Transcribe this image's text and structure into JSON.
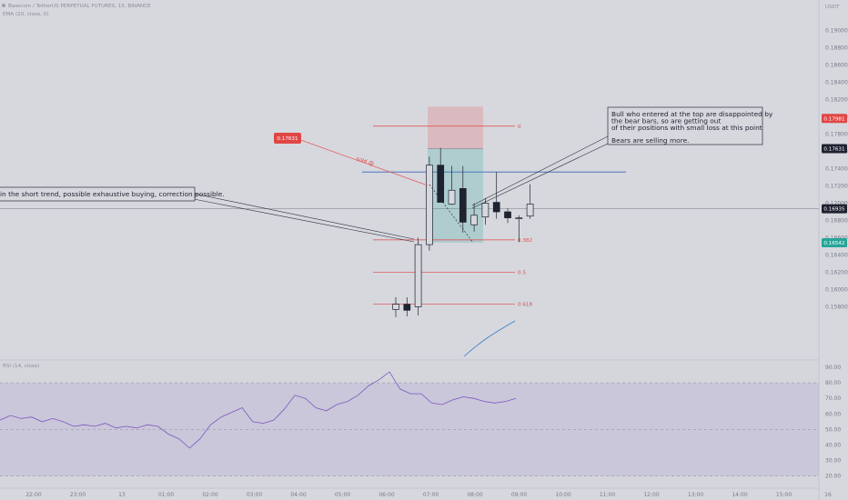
{
  "header": {
    "symbol_line": "Basecoin / TetherUS PERPETUAL FUTURES, 15, BINANCE",
    "ema_line": "EMA (20, close, 0)"
  },
  "price_axis": {
    "currency": "USDT",
    "ticks": [
      "0.19000",
      "0.18800",
      "0.18600",
      "0.18400",
      "0.18200",
      "0.18000",
      "0.17800",
      "0.17600",
      "0.17400",
      "0.17200",
      "0.17000",
      "0.16800",
      "0.16600",
      "0.16400",
      "0.16200",
      "0.16000",
      "0.15800"
    ]
  },
  "price_tags": [
    {
      "id": "top",
      "text": "0.17981",
      "color": "#e04646"
    },
    {
      "id": "sold",
      "text": "0.17631",
      "color": "#1f2230"
    },
    {
      "id": "last",
      "text": "0.16935",
      "color": "#1f2230"
    },
    {
      "id": "low",
      "text": "0.16542",
      "color": "#26a69a"
    }
  ],
  "left_tag": {
    "text": "0.17631",
    "color": "#e04646"
  },
  "sold_label": "sold @",
  "fib_levels": [
    {
      "label": "0",
      "value": 0.17892
    },
    {
      "label": "0.382",
      "value": 0.16575
    },
    {
      "label": "0.5",
      "value": 0.16198
    },
    {
      "label": "0.618",
      "value": 0.15832
    }
  ],
  "annotations": {
    "left_note": "in the short trend, possible exhaustive buying, correction possible.",
    "right_note_lines": [
      "Bull who entered at the top are disappointed by",
      " the bear bars, so are getting out",
      "of their positions with small loss at this point",
      "",
      "Bears are selling more."
    ]
  },
  "rsi": {
    "label": "RSI (14, close)",
    "ticks": [
      "90.00",
      "80.00",
      "70.00",
      "60.00",
      "50.00",
      "40.00",
      "30.00",
      "20.00"
    ],
    "upper": 80,
    "lower": 20,
    "middle": 50,
    "values": [
      56,
      59,
      57,
      58,
      55,
      57,
      55,
      52,
      53,
      52,
      54,
      51,
      52,
      51,
      53,
      52,
      47,
      44,
      38,
      44,
      53,
      58,
      61,
      64,
      55,
      54,
      56,
      63,
      72,
      70,
      64,
      62,
      66,
      68,
      72,
      78,
      82,
      87,
      76,
      73,
      73,
      67,
      66,
      69,
      71,
      70,
      68,
      67,
      68,
      70
    ]
  },
  "time_axis": {
    "labels": [
      "22:00",
      "23:00",
      "13",
      "01:00",
      "02:00",
      "03:00",
      "04:00",
      "05:00",
      "06:00",
      "07:00",
      "08:00",
      "09:00",
      "10:00",
      "11:00",
      "12:00",
      "13:00",
      "14:00",
      "15:00",
      "16"
    ]
  },
  "chart_data": {
    "type": "candlestick",
    "title": "Basecoin / TetherUS PERPETUAL FUTURES, 15, BINANCE",
    "ylim": [
      0.1575,
      0.191
    ],
    "candles": [
      {
        "o": 0.1577,
        "h": 0.1591,
        "l": 0.1568,
        "c": 0.1583
      },
      {
        "o": 0.1583,
        "h": 0.1591,
        "l": 0.1569,
        "c": 0.1576
      },
      {
        "o": 0.158,
        "h": 0.166,
        "l": 0.157,
        "c": 0.1652
      },
      {
        "o": 0.1652,
        "h": 0.1754,
        "l": 0.1645,
        "c": 0.1744
      },
      {
        "o": 0.1744,
        "h": 0.1764,
        "l": 0.1701,
        "c": 0.1701
      },
      {
        "o": 0.1699,
        "h": 0.1743,
        "l": 0.1698,
        "c": 0.1715
      },
      {
        "o": 0.1717,
        "h": 0.1743,
        "l": 0.1666,
        "c": 0.1678
      },
      {
        "o": 0.1675,
        "h": 0.17,
        "l": 0.1667,
        "c": 0.1686
      },
      {
        "o": 0.1684,
        "h": 0.1706,
        "l": 0.1675,
        "c": 0.17
      },
      {
        "o": 0.1701,
        "h": 0.1736,
        "l": 0.1682,
        "c": 0.169
      },
      {
        "o": 0.169,
        "h": 0.1694,
        "l": 0.1677,
        "c": 0.1683
      },
      {
        "o": 0.1682,
        "h": 0.1686,
        "l": 0.1655,
        "c": 0.1683
      },
      {
        "o": 0.1685,
        "h": 0.1722,
        "l": 0.1682,
        "c": 0.1699
      }
    ],
    "horizontal_lines": [
      {
        "name": "resistance",
        "value": 0.17361,
        "color": "#3e63b6"
      },
      {
        "name": "last price",
        "value": 0.16935,
        "color": "#8c8f98"
      }
    ],
    "short_position": {
      "entry": 0.17631,
      "stop": 0.17981,
      "target": 0.16542
    }
  }
}
